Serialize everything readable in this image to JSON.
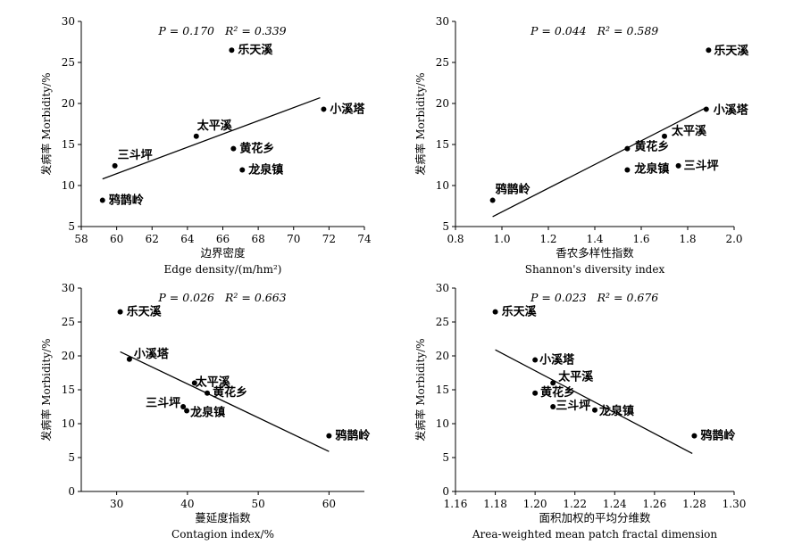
{
  "chart_data": [
    {
      "type": "scatter",
      "x_label_cn": "边界密度",
      "x_label_en": "Edge density/(m/hm²)",
      "y_label": "发病率 Morbidity/%",
      "stat_p": "P = 0.170",
      "stat_r2": "R² = 0.339",
      "xlim": [
        58,
        74
      ],
      "ylim": [
        5,
        30
      ],
      "x_ticks": [
        58,
        60,
        62,
        64,
        66,
        68,
        70,
        72,
        74
      ],
      "x_tick_labels": [
        "58",
        "60",
        "62",
        "64",
        "66",
        "68",
        "70",
        "72",
        "74"
      ],
      "y_ticks": [
        5,
        10,
        15,
        20,
        25,
        30
      ],
      "y_tick_labels": [
        "5",
        "10",
        "15",
        "20",
        "25",
        "30"
      ],
      "points": [
        {
          "label": "乐天溪",
          "x": 66.5,
          "y": 26.5
        },
        {
          "label": "小溪塔",
          "x": 71.7,
          "y": 19.3
        },
        {
          "label": "太平溪",
          "x": 64.5,
          "y": 16.0
        },
        {
          "label": "黄花乡",
          "x": 66.6,
          "y": 14.5
        },
        {
          "label": "龙泉镇",
          "x": 67.1,
          "y": 11.9
        },
        {
          "label": "三斗坪",
          "x": 59.9,
          "y": 12.4
        },
        {
          "label": "鸦鹊岭",
          "x": 59.2,
          "y": 8.2
        }
      ],
      "fit_line": [
        {
          "x": 59.2,
          "y": 10.8
        },
        {
          "x": 71.5,
          "y": 20.7
        }
      ]
    },
    {
      "type": "scatter",
      "x_label_cn": "香农多样性指数",
      "x_label_en": "Shannon's diversity index",
      "y_label": "发病率 Morbidity/%",
      "stat_p": "P = 0.044",
      "stat_r2": "R² = 0.589",
      "xlim": [
        0.8,
        2.0
      ],
      "ylim": [
        5,
        30
      ],
      "x_ticks": [
        0.8,
        1.0,
        1.2,
        1.4,
        1.6,
        1.8,
        2.0
      ],
      "x_tick_labels": [
        "0.8",
        "1.0",
        "1.2",
        "1.4",
        "1.6",
        "1.8",
        "2.0"
      ],
      "y_ticks": [
        5,
        10,
        15,
        20,
        25,
        30
      ],
      "y_tick_labels": [
        "5",
        "10",
        "15",
        "20",
        "25",
        "30"
      ],
      "points": [
        {
          "label": "乐天溪",
          "x": 1.89,
          "y": 26.5
        },
        {
          "label": "小溪塔",
          "x": 1.88,
          "y": 19.3
        },
        {
          "label": "太平溪",
          "x": 1.7,
          "y": 16.0
        },
        {
          "label": "黄花乡",
          "x": 1.54,
          "y": 14.5
        },
        {
          "label": "龙泉镇",
          "x": 1.54,
          "y": 11.9
        },
        {
          "label": "三斗坪",
          "x": 1.76,
          "y": 12.4
        },
        {
          "label": "鸦鹊岭",
          "x": 0.96,
          "y": 8.2
        }
      ],
      "fit_line": [
        {
          "x": 0.96,
          "y": 6.2
        },
        {
          "x": 1.88,
          "y": 19.5
        }
      ]
    },
    {
      "type": "scatter",
      "x_label_cn": "蔓延度指数",
      "x_label_en": "Contagion index/%",
      "y_label": "发病率 Morbidity/%",
      "stat_p": "P = 0.026",
      "stat_r2": "R² = 0.663",
      "xlim": [
        25,
        65
      ],
      "ylim": [
        0,
        30
      ],
      "x_ticks": [
        30,
        40,
        50,
        60
      ],
      "x_tick_labels": [
        "30",
        "40",
        "50",
        "60"
      ],
      "y_ticks": [
        0,
        5,
        10,
        15,
        20,
        25,
        30
      ],
      "y_tick_labels": [
        "0",
        "5",
        "10",
        "15",
        "20",
        "25",
        "30"
      ],
      "points": [
        {
          "label": "乐天溪",
          "x": 30.5,
          "y": 26.5
        },
        {
          "label": "小溪塔",
          "x": 31.8,
          "y": 19.5
        },
        {
          "label": "太平溪",
          "x": 41.0,
          "y": 16.0
        },
        {
          "label": "黄花乡",
          "x": 42.8,
          "y": 14.5
        },
        {
          "label": "三斗坪",
          "x": 39.4,
          "y": 12.5
        },
        {
          "label": "龙泉镇",
          "x": 39.9,
          "y": 11.9
        },
        {
          "label": "鸦鹊岭",
          "x": 60.0,
          "y": 8.2
        }
      ],
      "fit_line": [
        {
          "x": 30.5,
          "y": 20.6
        },
        {
          "x": 60.0,
          "y": 5.9
        }
      ]
    },
    {
      "type": "scatter",
      "x_label_cn": "面积加权的平均分维数",
      "x_label_en": "Area-weighted mean patch fractal dimension",
      "y_label": "发病率 Morbidity/%",
      "stat_p": "P = 0.023",
      "stat_r2": "R² = 0.676",
      "xlim": [
        1.16,
        1.3
      ],
      "ylim": [
        0,
        30
      ],
      "x_ticks": [
        1.16,
        1.18,
        1.2,
        1.22,
        1.24,
        1.26,
        1.28,
        1.3
      ],
      "x_tick_labels": [
        "1.16",
        "1.18",
        "1.20",
        "1.22",
        "1.24",
        "1.26",
        "1.28",
        "1.30"
      ],
      "y_ticks": [
        0,
        5,
        10,
        15,
        20,
        25,
        30
      ],
      "y_tick_labels": [
        "0",
        "5",
        "10",
        "15",
        "20",
        "25",
        "30"
      ],
      "points": [
        {
          "label": "乐天溪",
          "x": 1.18,
          "y": 26.5
        },
        {
          "label": "小溪塔",
          "x": 1.2,
          "y": 19.4
        },
        {
          "label": "太平溪",
          "x": 1.209,
          "y": 16.0
        },
        {
          "label": "黄花乡",
          "x": 1.2,
          "y": 14.5
        },
        {
          "label": "三斗坪",
          "x": 1.209,
          "y": 12.5
        },
        {
          "label": "龙泉镇",
          "x": 1.23,
          "y": 12.0
        },
        {
          "label": "鸦鹊岭",
          "x": 1.28,
          "y": 8.2
        }
      ],
      "fit_line": [
        {
          "x": 1.18,
          "y": 20.9
        },
        {
          "x": 1.279,
          "y": 5.6
        }
      ]
    }
  ]
}
